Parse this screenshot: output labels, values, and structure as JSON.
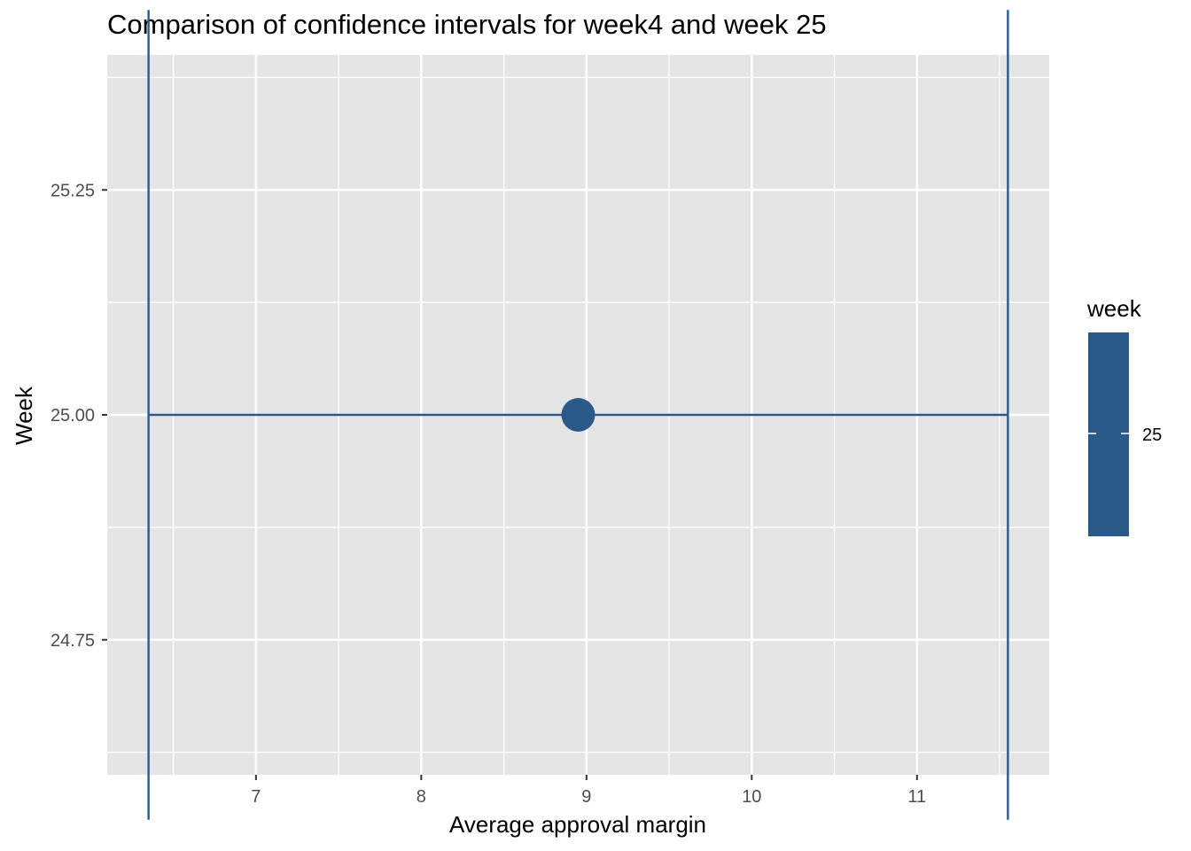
{
  "chart_data": {
    "type": "errorbar",
    "title": "Comparison of confidence intervals for week4 and week 25",
    "xlabel": "Average approval margin",
    "ylabel": "Week",
    "xlim": [
      6.1,
      11.8
    ],
    "ylim": [
      24.6,
      25.4
    ],
    "x_ticks": [
      7,
      8,
      9,
      10,
      11
    ],
    "x_tick_labels": [
      "7",
      "8",
      "9",
      "10",
      "11"
    ],
    "y_ticks": [
      24.75,
      25.0,
      25.25
    ],
    "y_tick_labels": [
      "24.75",
      "25.00",
      "25.25"
    ],
    "grid": true,
    "points": [
      {
        "week": 25,
        "x": 8.95,
        "x_low": 6.35,
        "x_high": 11.55,
        "cap_low": 24.55,
        "cap_high": 25.45
      }
    ],
    "legend": {
      "title": "week",
      "labels": [
        "25"
      ],
      "placement": "right"
    },
    "colors": {
      "series": "#2b5a88",
      "panel": "#e5e5e5",
      "grid": "#ffffff"
    }
  }
}
